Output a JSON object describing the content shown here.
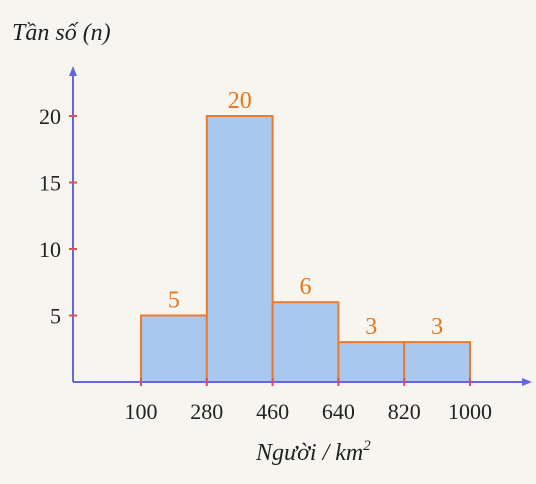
{
  "chart_data": {
    "type": "bar",
    "ylabel": "Tần số (n)",
    "xlabel_main": "Người / km",
    "xlabel_sup": "2",
    "bins": [
      [
        100,
        280
      ],
      [
        280,
        460
      ],
      [
        460,
        640
      ],
      [
        640,
        820
      ],
      [
        820,
        1000
      ]
    ],
    "values": [
      5,
      20,
      6,
      3,
      3
    ],
    "data_labels": [
      "5",
      "20",
      "6",
      "3",
      "3"
    ],
    "x_ticks": [
      "100",
      "280",
      "460",
      "640",
      "820",
      "1000"
    ],
    "x_tick_values": [
      100,
      280,
      460,
      640,
      820,
      1000
    ],
    "y_ticks": [
      "5",
      "10",
      "15",
      "20"
    ],
    "y_tick_values": [
      5,
      10,
      15,
      20
    ],
    "ylim": [
      0,
      25
    ],
    "colors": {
      "bar_fill": "#a8c8ee",
      "bar_stroke": "#ee7a2a",
      "axis": "#6666dd",
      "tick_mark": "#e05050",
      "data_label": "#e8741a"
    }
  }
}
